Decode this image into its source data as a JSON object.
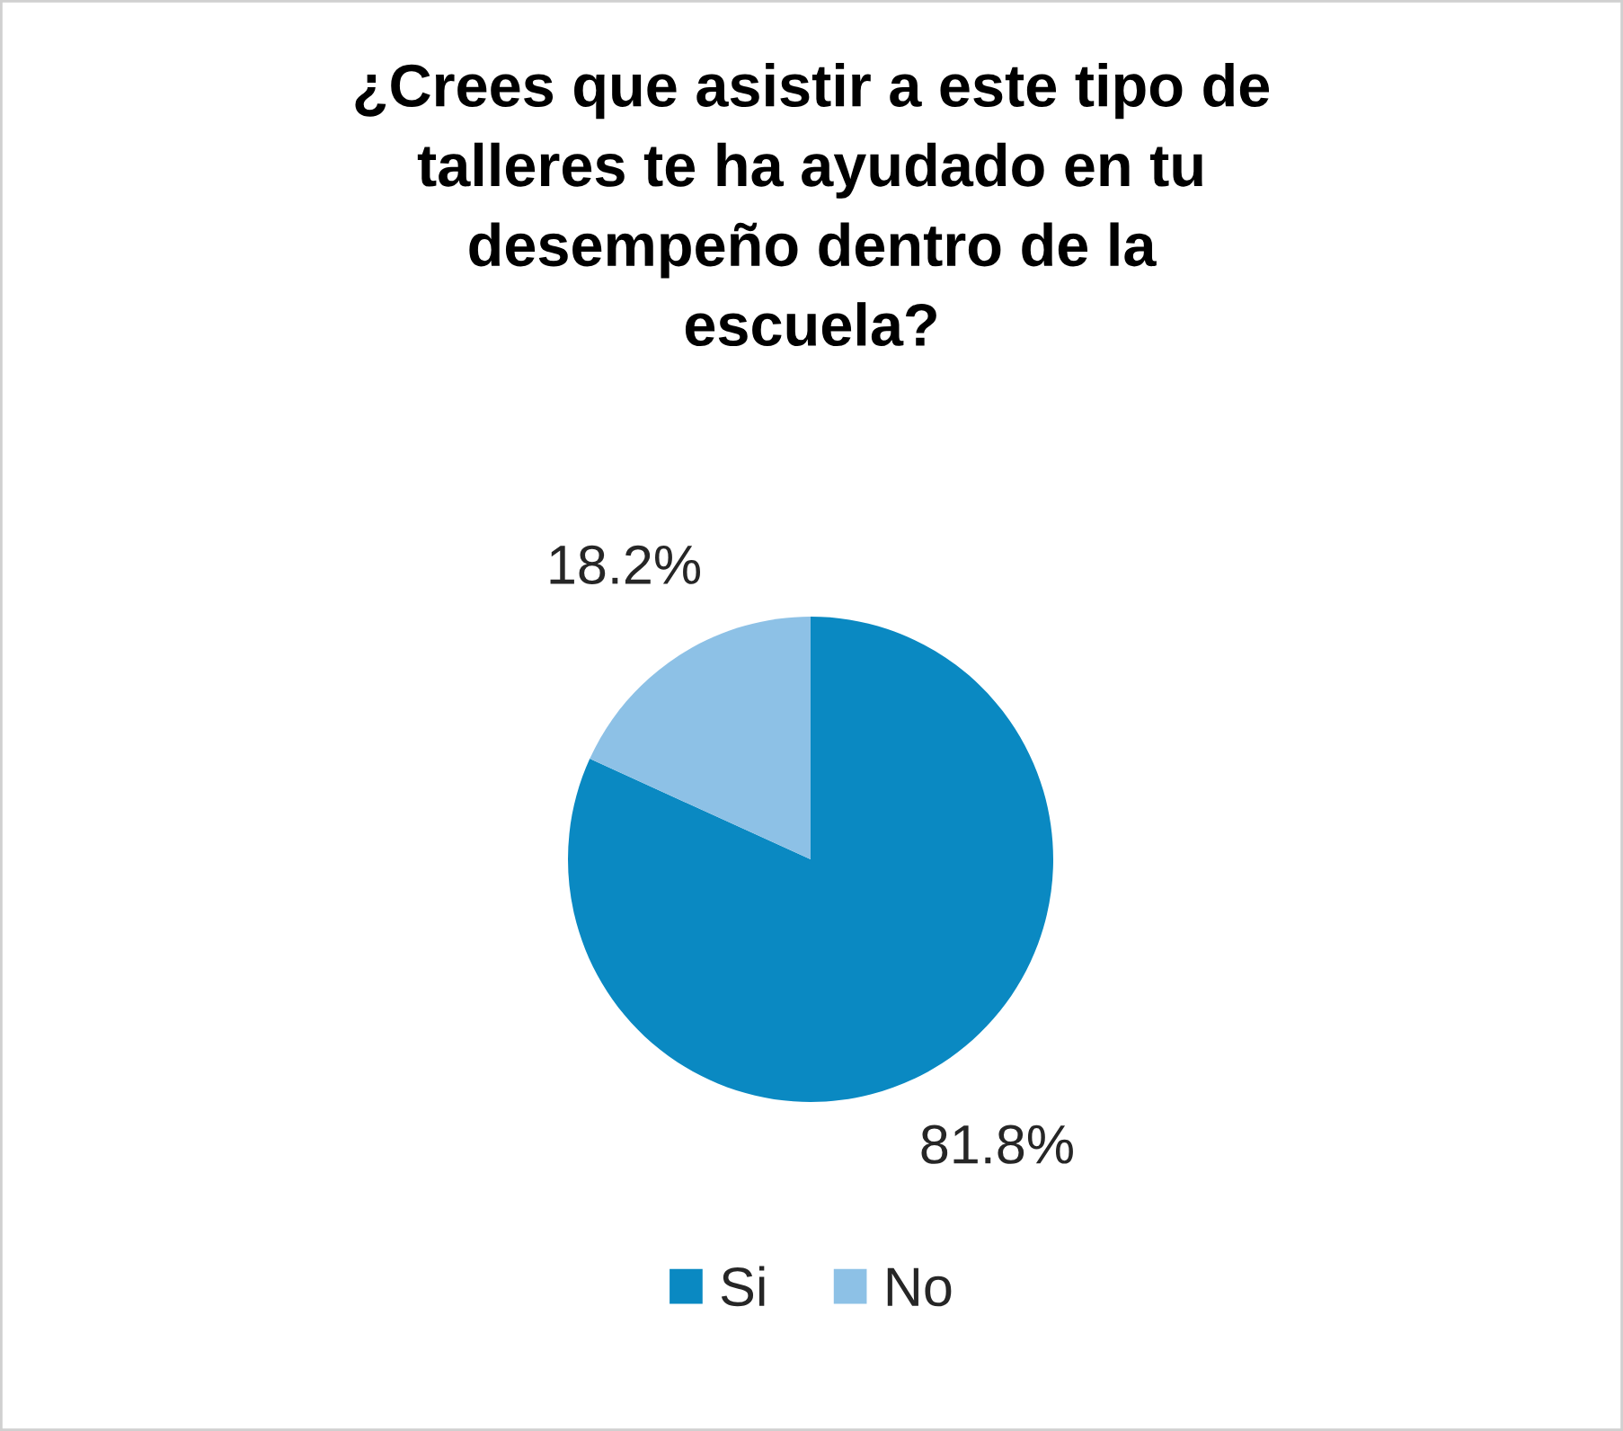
{
  "chart_data": {
    "type": "pie",
    "title": "¿Crees que asistir a este tipo de\ntalleres te ha ayudado en tu\ndesempeño dentro de la\nescuela?",
    "categories": [
      "Si",
      "No"
    ],
    "values": [
      81.8,
      18.2
    ],
    "value_labels": [
      "81.8%",
      "18.2%"
    ],
    "colors": [
      "#0a89c2",
      "#8dc1e6"
    ],
    "legend": "bottom"
  }
}
